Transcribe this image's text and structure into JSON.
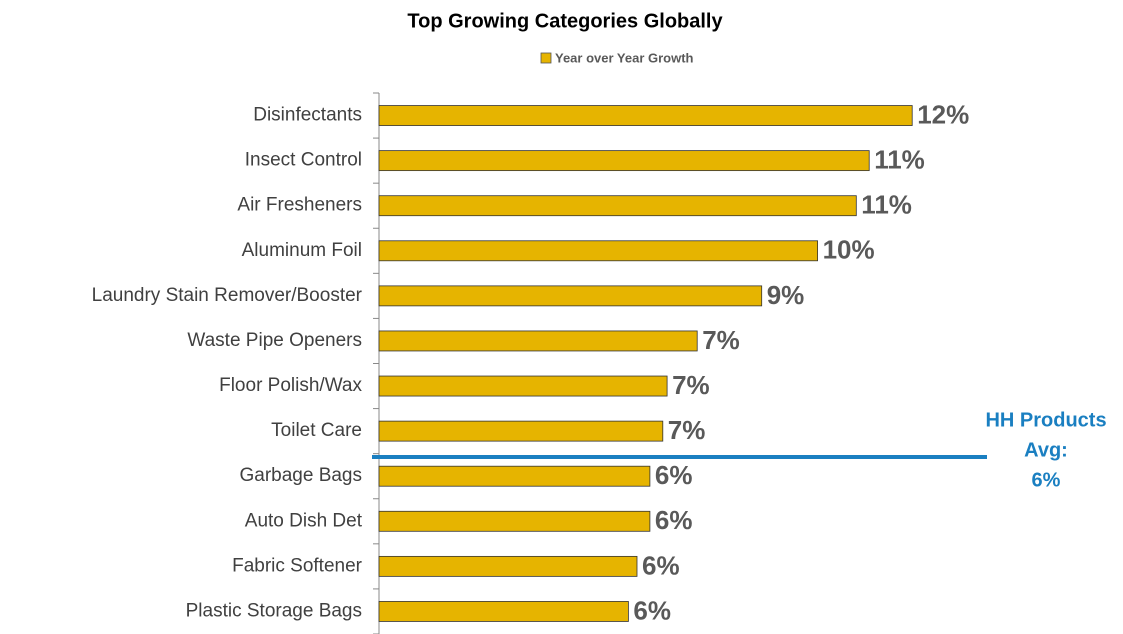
{
  "chart_data": {
    "type": "bar",
    "orientation": "horizontal",
    "title": "Top Growing Categories Globally",
    "series": [
      {
        "name": "Year over Year Growth",
        "color": "#e6b400",
        "values": [
          12.4,
          11.4,
          11.1,
          10.2,
          8.9,
          7.4,
          6.7,
          6.6,
          6.3,
          6.3,
          6.0,
          5.8
        ],
        "value_labels": [
          "12%",
          "11%",
          "11%",
          "10%",
          "9%",
          "7%",
          "7%",
          "7%",
          "6%",
          "6%",
          "6%",
          "6%"
        ]
      }
    ],
    "categories": [
      "Disinfectants",
      "Insect Control",
      "Air Fresheners",
      "Aluminum Foil",
      "Laundry Stain Remover/Booster",
      "Waste Pipe Openers",
      "Floor Polish/Wax",
      "Toilet Care",
      "Garbage Bags",
      "Auto Dish Det",
      "Fabric Softener",
      "Plastic Storage Bags"
    ],
    "xlim": [
      0,
      14
    ],
    "legend": "top",
    "annotation": {
      "lines": [
        "HH Products",
        "Avg:",
        "6%"
      ],
      "color": "#1a7fc1"
    }
  }
}
